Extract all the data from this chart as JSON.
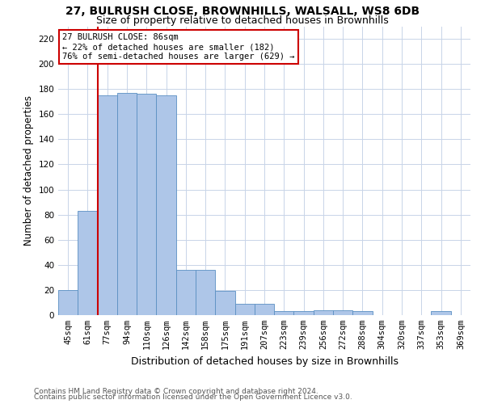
{
  "title1": "27, BULRUSH CLOSE, BROWNHILLS, WALSALL, WS8 6DB",
  "title2": "Size of property relative to detached houses in Brownhills",
  "xlabel": "Distribution of detached houses by size in Brownhills",
  "ylabel": "Number of detached properties",
  "bar_labels": [
    "45sqm",
    "61sqm",
    "77sqm",
    "94sqm",
    "110sqm",
    "126sqm",
    "142sqm",
    "158sqm",
    "175sqm",
    "191sqm",
    "207sqm",
    "223sqm",
    "239sqm",
    "256sqm",
    "272sqm",
    "288sqm",
    "304sqm",
    "320sqm",
    "337sqm",
    "353sqm",
    "369sqm"
  ],
  "bar_values": [
    20,
    83,
    175,
    177,
    176,
    175,
    36,
    36,
    19,
    9,
    9,
    3,
    3,
    4,
    4,
    3,
    0,
    0,
    0,
    3,
    0
  ],
  "bar_color": "#aec6e8",
  "bar_edge_color": "#5a8fc2",
  "ylim": [
    0,
    230
  ],
  "yticks": [
    0,
    20,
    40,
    60,
    80,
    100,
    120,
    140,
    160,
    180,
    200,
    220
  ],
  "vline_x": 1.5,
  "vline_color": "#cc0000",
  "annotation_title": "27 BULRUSH CLOSE: 86sqm",
  "annotation_line1": "← 22% of detached houses are smaller (182)",
  "annotation_line2": "76% of semi-detached houses are larger (629) →",
  "annotation_box_color": "#ffffff",
  "annotation_box_edgecolor": "#cc0000",
  "footer1": "Contains HM Land Registry data © Crown copyright and database right 2024.",
  "footer2": "Contains public sector information licensed under the Open Government Licence v3.0.",
  "bg_color": "#ffffff",
  "grid_color": "#c8d4e8",
  "title1_fontsize": 10,
  "title2_fontsize": 9,
  "xlabel_fontsize": 9,
  "ylabel_fontsize": 8.5,
  "tick_fontsize": 7.5,
  "footer_fontsize": 6.5,
  "annotation_fontsize": 7.5
}
